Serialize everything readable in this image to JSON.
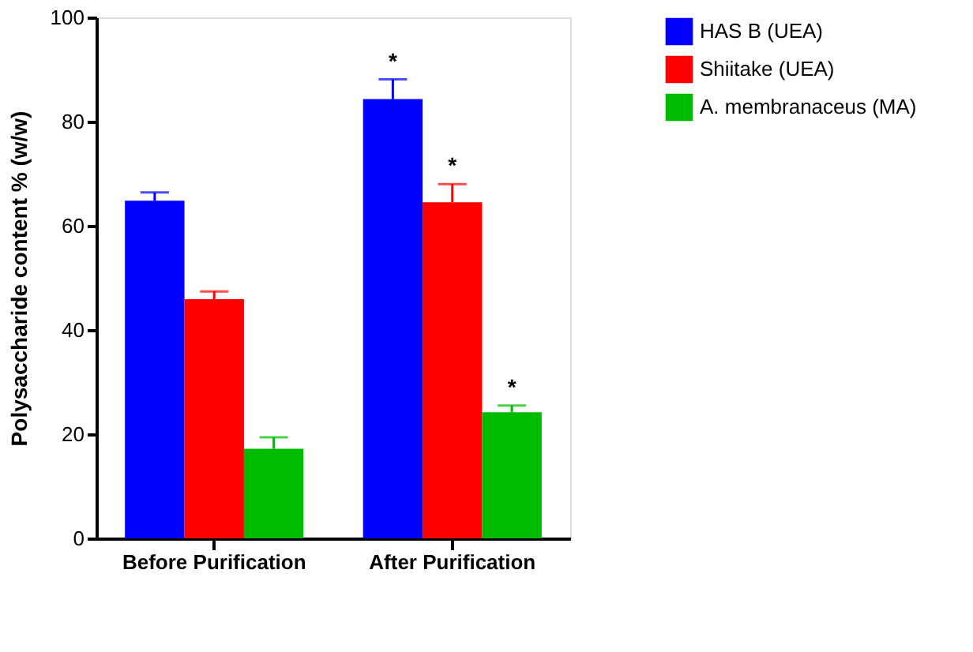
{
  "chart_data": {
    "type": "bar",
    "ylabel": "Polysaccharide content % (w/w)",
    "categories": [
      "Before Purification",
      "After Purification"
    ],
    "series": [
      {
        "name": "HAS B (UEA)",
        "color": "#0000ff",
        "values": [
          64.8,
          84.3
        ],
        "errors": [
          1.6,
          3.8
        ]
      },
      {
        "name": "Shiitake (UEA)",
        "color": "#ff0000",
        "values": [
          45.9,
          64.5
        ],
        "errors": [
          1.5,
          3.5
        ]
      },
      {
        "name": "A. membranaceus (MA)",
        "color": "#00bb00",
        "values": [
          17.2,
          24.2
        ],
        "errors": [
          2.2,
          1.3
        ]
      }
    ],
    "ylim": [
      0,
      100
    ],
    "yticks": [
      0,
      20,
      40,
      60,
      80,
      100
    ],
    "grid": false,
    "legend": "right",
    "annotations": [
      "*",
      "*",
      "*"
    ]
  }
}
